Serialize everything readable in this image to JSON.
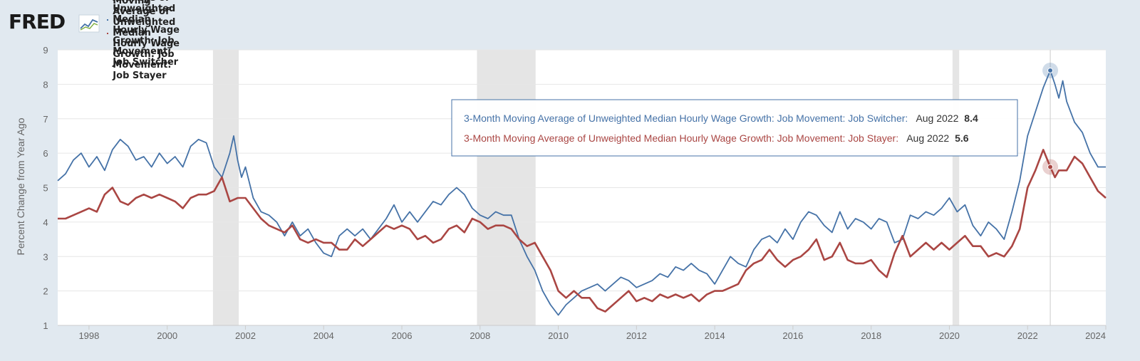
{
  "header": {
    "logo_text": "FRED",
    "logo_icon": "line-chart-icon"
  },
  "colors": {
    "background": "#e1e9f0",
    "plot_background": "#ffffff",
    "switcher": "#4572a7",
    "stayer": "#aa4643",
    "recession": "#e5e5e5",
    "grid": "#e6e6e6"
  },
  "tooltip": {
    "switcher_text": "3-Month Moving Average of Unweighted Median Hourly Wage Growth: Job Movement: Job Switcher:",
    "switcher_date": "Aug 2022",
    "switcher_value": "8.4",
    "stayer_text": "3-Month Moving Average of Unweighted Median Hourly Wage Growth: Job Movement: Job Stayer:",
    "stayer_date": "Aug 2022",
    "stayer_value": "5.6"
  },
  "chart_data": {
    "type": "line",
    "title": "",
    "ylabel": "Percent Change from Year Ago",
    "xlabel": "",
    "ylim": [
      1,
      9
    ],
    "xlim": [
      1997.2,
      2024.0
    ],
    "y_ticks": [
      "1",
      "2",
      "3",
      "4",
      "5",
      "6",
      "7",
      "8",
      "9"
    ],
    "x_ticks": [
      "1998",
      "2000",
      "2002",
      "2004",
      "2006",
      "2008",
      "2010",
      "2012",
      "2014",
      "2016",
      "2018",
      "2020",
      "2022",
      "2024"
    ],
    "grid": true,
    "legend_position": "top-left",
    "recessions": [
      [
        2001.17,
        2001.83
      ],
      [
        2007.92,
        2009.42
      ],
      [
        2020.08,
        2020.25
      ]
    ],
    "highlight_x": 2022.58,
    "series": [
      {
        "name": "3-Month Moving Average of Unweighted Median Hourly Wage Growth: Job Movement: Job Switcher",
        "points": [
          [
            1997.2,
            5.2
          ],
          [
            1997.4,
            5.4
          ],
          [
            1997.6,
            5.8
          ],
          [
            1997.8,
            6.0
          ],
          [
            1998.0,
            5.6
          ],
          [
            1998.2,
            5.9
          ],
          [
            1998.4,
            5.5
          ],
          [
            1998.6,
            6.1
          ],
          [
            1998.8,
            6.4
          ],
          [
            1999.0,
            6.2
          ],
          [
            1999.2,
            5.8
          ],
          [
            1999.4,
            5.9
          ],
          [
            1999.6,
            5.6
          ],
          [
            1999.8,
            6.0
          ],
          [
            2000.0,
            5.7
          ],
          [
            2000.2,
            5.9
          ],
          [
            2000.4,
            5.6
          ],
          [
            2000.6,
            6.2
          ],
          [
            2000.8,
            6.4
          ],
          [
            2001.0,
            6.3
          ],
          [
            2001.2,
            5.6
          ],
          [
            2001.4,
            5.3
          ],
          [
            2001.6,
            6.0
          ],
          [
            2001.7,
            6.5
          ],
          [
            2001.8,
            5.8
          ],
          [
            2001.9,
            5.3
          ],
          [
            2002.0,
            5.6
          ],
          [
            2002.2,
            4.7
          ],
          [
            2002.4,
            4.3
          ],
          [
            2002.6,
            4.2
          ],
          [
            2002.8,
            4.0
          ],
          [
            2003.0,
            3.6
          ],
          [
            2003.2,
            4.0
          ],
          [
            2003.4,
            3.6
          ],
          [
            2003.6,
            3.8
          ],
          [
            2003.8,
            3.4
          ],
          [
            2004.0,
            3.1
          ],
          [
            2004.2,
            3.0
          ],
          [
            2004.4,
            3.6
          ],
          [
            2004.6,
            3.8
          ],
          [
            2004.8,
            3.6
          ],
          [
            2005.0,
            3.8
          ],
          [
            2005.2,
            3.5
          ],
          [
            2005.4,
            3.8
          ],
          [
            2005.6,
            4.1
          ],
          [
            2005.8,
            4.5
          ],
          [
            2006.0,
            4.0
          ],
          [
            2006.2,
            4.3
          ],
          [
            2006.4,
            4.0
          ],
          [
            2006.6,
            4.3
          ],
          [
            2006.8,
            4.6
          ],
          [
            2007.0,
            4.5
          ],
          [
            2007.2,
            4.8
          ],
          [
            2007.4,
            5.0
          ],
          [
            2007.6,
            4.8
          ],
          [
            2007.8,
            4.4
          ],
          [
            2008.0,
            4.2
          ],
          [
            2008.2,
            4.1
          ],
          [
            2008.4,
            4.3
          ],
          [
            2008.6,
            4.2
          ],
          [
            2008.8,
            4.2
          ],
          [
            2009.0,
            3.5
          ],
          [
            2009.2,
            3.0
          ],
          [
            2009.4,
            2.6
          ],
          [
            2009.6,
            2.0
          ],
          [
            2009.8,
            1.6
          ],
          [
            2010.0,
            1.3
          ],
          [
            2010.2,
            1.6
          ],
          [
            2010.4,
            1.8
          ],
          [
            2010.6,
            2.0
          ],
          [
            2010.8,
            2.1
          ],
          [
            2011.0,
            2.2
          ],
          [
            2011.2,
            2.0
          ],
          [
            2011.4,
            2.2
          ],
          [
            2011.6,
            2.4
          ],
          [
            2011.8,
            2.3
          ],
          [
            2012.0,
            2.1
          ],
          [
            2012.2,
            2.2
          ],
          [
            2012.4,
            2.3
          ],
          [
            2012.6,
            2.5
          ],
          [
            2012.8,
            2.4
          ],
          [
            2013.0,
            2.7
          ],
          [
            2013.2,
            2.6
          ],
          [
            2013.4,
            2.8
          ],
          [
            2013.6,
            2.6
          ],
          [
            2013.8,
            2.5
          ],
          [
            2014.0,
            2.2
          ],
          [
            2014.2,
            2.6
          ],
          [
            2014.4,
            3.0
          ],
          [
            2014.6,
            2.8
          ],
          [
            2014.8,
            2.7
          ],
          [
            2015.0,
            3.2
          ],
          [
            2015.2,
            3.5
          ],
          [
            2015.4,
            3.6
          ],
          [
            2015.6,
            3.4
          ],
          [
            2015.8,
            3.8
          ],
          [
            2016.0,
            3.5
          ],
          [
            2016.2,
            4.0
          ],
          [
            2016.4,
            4.3
          ],
          [
            2016.6,
            4.2
          ],
          [
            2016.8,
            3.9
          ],
          [
            2017.0,
            3.7
          ],
          [
            2017.2,
            4.3
          ],
          [
            2017.4,
            3.8
          ],
          [
            2017.6,
            4.1
          ],
          [
            2017.8,
            4.0
          ],
          [
            2018.0,
            3.8
          ],
          [
            2018.2,
            4.1
          ],
          [
            2018.4,
            4.0
          ],
          [
            2018.6,
            3.4
          ],
          [
            2018.8,
            3.5
          ],
          [
            2019.0,
            4.2
          ],
          [
            2019.2,
            4.1
          ],
          [
            2019.4,
            4.3
          ],
          [
            2019.6,
            4.2
          ],
          [
            2019.8,
            4.4
          ],
          [
            2020.0,
            4.7
          ],
          [
            2020.2,
            4.3
          ],
          [
            2020.4,
            4.5
          ],
          [
            2020.6,
            3.9
          ],
          [
            2020.8,
            3.6
          ],
          [
            2021.0,
            4.0
          ],
          [
            2021.2,
            3.8
          ],
          [
            2021.4,
            3.5
          ],
          [
            2021.6,
            4.3
          ],
          [
            2021.8,
            5.2
          ],
          [
            2022.0,
            6.5
          ],
          [
            2022.2,
            7.2
          ],
          [
            2022.4,
            7.9
          ],
          [
            2022.58,
            8.4
          ],
          [
            2022.7,
            8.0
          ],
          [
            2022.8,
            7.6
          ],
          [
            2022.9,
            8.1
          ],
          [
            2023.0,
            7.5
          ],
          [
            2023.2,
            6.9
          ],
          [
            2023.4,
            6.6
          ],
          [
            2023.6,
            6.0
          ],
          [
            2023.8,
            5.6
          ],
          [
            2024.0,
            5.6
          ]
        ]
      },
      {
        "name": "3-Month Moving Average of Unweighted Median Hourly Wage Growth: Job Movement: Job Stayer",
        "points": [
          [
            1997.2,
            4.1
          ],
          [
            1997.4,
            4.1
          ],
          [
            1997.6,
            4.2
          ],
          [
            1997.8,
            4.3
          ],
          [
            1998.0,
            4.4
          ],
          [
            1998.2,
            4.3
          ],
          [
            1998.4,
            4.8
          ],
          [
            1998.6,
            5.0
          ],
          [
            1998.8,
            4.6
          ],
          [
            1999.0,
            4.5
          ],
          [
            1999.2,
            4.7
          ],
          [
            1999.4,
            4.8
          ],
          [
            1999.6,
            4.7
          ],
          [
            1999.8,
            4.8
          ],
          [
            2000.0,
            4.7
          ],
          [
            2000.2,
            4.6
          ],
          [
            2000.4,
            4.4
          ],
          [
            2000.6,
            4.7
          ],
          [
            2000.8,
            4.8
          ],
          [
            2001.0,
            4.8
          ],
          [
            2001.2,
            4.9
          ],
          [
            2001.4,
            5.3
          ],
          [
            2001.6,
            4.6
          ],
          [
            2001.8,
            4.7
          ],
          [
            2002.0,
            4.7
          ],
          [
            2002.2,
            4.4
          ],
          [
            2002.4,
            4.1
          ],
          [
            2002.6,
            3.9
          ],
          [
            2002.8,
            3.8
          ],
          [
            2003.0,
            3.7
          ],
          [
            2003.2,
            3.9
          ],
          [
            2003.4,
            3.5
          ],
          [
            2003.6,
            3.4
          ],
          [
            2003.8,
            3.5
          ],
          [
            2004.0,
            3.4
          ],
          [
            2004.2,
            3.4
          ],
          [
            2004.4,
            3.2
          ],
          [
            2004.6,
            3.2
          ],
          [
            2004.8,
            3.5
          ],
          [
            2005.0,
            3.3
          ],
          [
            2005.2,
            3.5
          ],
          [
            2005.4,
            3.7
          ],
          [
            2005.6,
            3.9
          ],
          [
            2005.8,
            3.8
          ],
          [
            2006.0,
            3.9
          ],
          [
            2006.2,
            3.8
          ],
          [
            2006.4,
            3.5
          ],
          [
            2006.6,
            3.6
          ],
          [
            2006.8,
            3.4
          ],
          [
            2007.0,
            3.5
          ],
          [
            2007.2,
            3.8
          ],
          [
            2007.4,
            3.9
          ],
          [
            2007.6,
            3.7
          ],
          [
            2007.8,
            4.1
          ],
          [
            2008.0,
            4.0
          ],
          [
            2008.2,
            3.8
          ],
          [
            2008.4,
            3.9
          ],
          [
            2008.6,
            3.9
          ],
          [
            2008.8,
            3.8
          ],
          [
            2009.0,
            3.5
          ],
          [
            2009.2,
            3.3
          ],
          [
            2009.4,
            3.4
          ],
          [
            2009.6,
            3.0
          ],
          [
            2009.8,
            2.6
          ],
          [
            2010.0,
            2.0
          ],
          [
            2010.2,
            1.8
          ],
          [
            2010.4,
            2.0
          ],
          [
            2010.6,
            1.8
          ],
          [
            2010.8,
            1.8
          ],
          [
            2011.0,
            1.5
          ],
          [
            2011.2,
            1.4
          ],
          [
            2011.4,
            1.6
          ],
          [
            2011.6,
            1.8
          ],
          [
            2011.8,
            2.0
          ],
          [
            2012.0,
            1.7
          ],
          [
            2012.2,
            1.8
          ],
          [
            2012.4,
            1.7
          ],
          [
            2012.6,
            1.9
          ],
          [
            2012.8,
            1.8
          ],
          [
            2013.0,
            1.9
          ],
          [
            2013.2,
            1.8
          ],
          [
            2013.4,
            1.9
          ],
          [
            2013.6,
            1.7
          ],
          [
            2013.8,
            1.9
          ],
          [
            2014.0,
            2.0
          ],
          [
            2014.2,
            2.0
          ],
          [
            2014.4,
            2.1
          ],
          [
            2014.6,
            2.2
          ],
          [
            2014.8,
            2.6
          ],
          [
            2015.0,
            2.8
          ],
          [
            2015.2,
            2.9
          ],
          [
            2015.4,
            3.2
          ],
          [
            2015.6,
            2.9
          ],
          [
            2015.8,
            2.7
          ],
          [
            2016.0,
            2.9
          ],
          [
            2016.2,
            3.0
          ],
          [
            2016.4,
            3.2
          ],
          [
            2016.6,
            3.5
          ],
          [
            2016.8,
            2.9
          ],
          [
            2017.0,
            3.0
          ],
          [
            2017.2,
            3.4
          ],
          [
            2017.4,
            2.9
          ],
          [
            2017.6,
            2.8
          ],
          [
            2017.8,
            2.8
          ],
          [
            2018.0,
            2.9
          ],
          [
            2018.2,
            2.6
          ],
          [
            2018.4,
            2.4
          ],
          [
            2018.6,
            3.1
          ],
          [
            2018.8,
            3.6
          ],
          [
            2019.0,
            3.0
          ],
          [
            2019.2,
            3.2
          ],
          [
            2019.4,
            3.4
          ],
          [
            2019.6,
            3.2
          ],
          [
            2019.8,
            3.4
          ],
          [
            2020.0,
            3.2
          ],
          [
            2020.2,
            3.4
          ],
          [
            2020.4,
            3.6
          ],
          [
            2020.6,
            3.3
          ],
          [
            2020.8,
            3.3
          ],
          [
            2021.0,
            3.0
          ],
          [
            2021.2,
            3.1
          ],
          [
            2021.4,
            3.0
          ],
          [
            2021.6,
            3.3
          ],
          [
            2021.8,
            3.8
          ],
          [
            2022.0,
            5.0
          ],
          [
            2022.2,
            5.5
          ],
          [
            2022.4,
            6.1
          ],
          [
            2022.58,
            5.6
          ],
          [
            2022.7,
            5.3
          ],
          [
            2022.8,
            5.5
          ],
          [
            2023.0,
            5.5
          ],
          [
            2023.2,
            5.9
          ],
          [
            2023.4,
            5.7
          ],
          [
            2023.6,
            5.3
          ],
          [
            2023.8,
            4.9
          ],
          [
            2024.0,
            4.7
          ]
        ]
      }
    ]
  }
}
